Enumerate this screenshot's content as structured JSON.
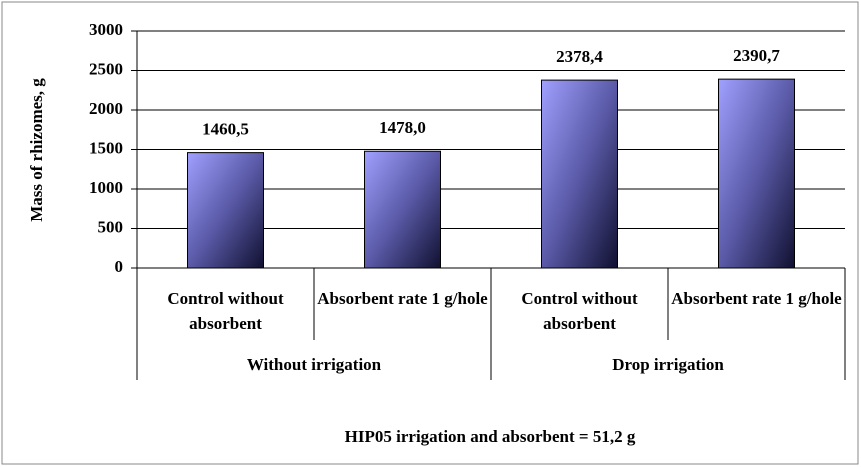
{
  "chart_data": {
    "type": "bar",
    "y_label": "Mass of rhizomes, g",
    "categories": [
      "Control without absorbent",
      "Absorbent rate 1 g/hole",
      "Control without absorbent",
      "Absorbent rate 1 g/hole"
    ],
    "groups": [
      "Without irrigation",
      "Drop irrigation"
    ],
    "values": [
      1460.5,
      1478.0,
      2378.4,
      2390.7
    ],
    "value_labels": [
      "1460,5",
      "1478,0",
      "2378,4",
      "2390,7"
    ],
    "ylim": [
      0,
      3000
    ],
    "yticks": [
      0,
      500,
      1000,
      1500,
      2000,
      2500,
      3000
    ],
    "grid": true,
    "annotation": "HIP05 irrigation and absorbent = 51,2 g"
  }
}
